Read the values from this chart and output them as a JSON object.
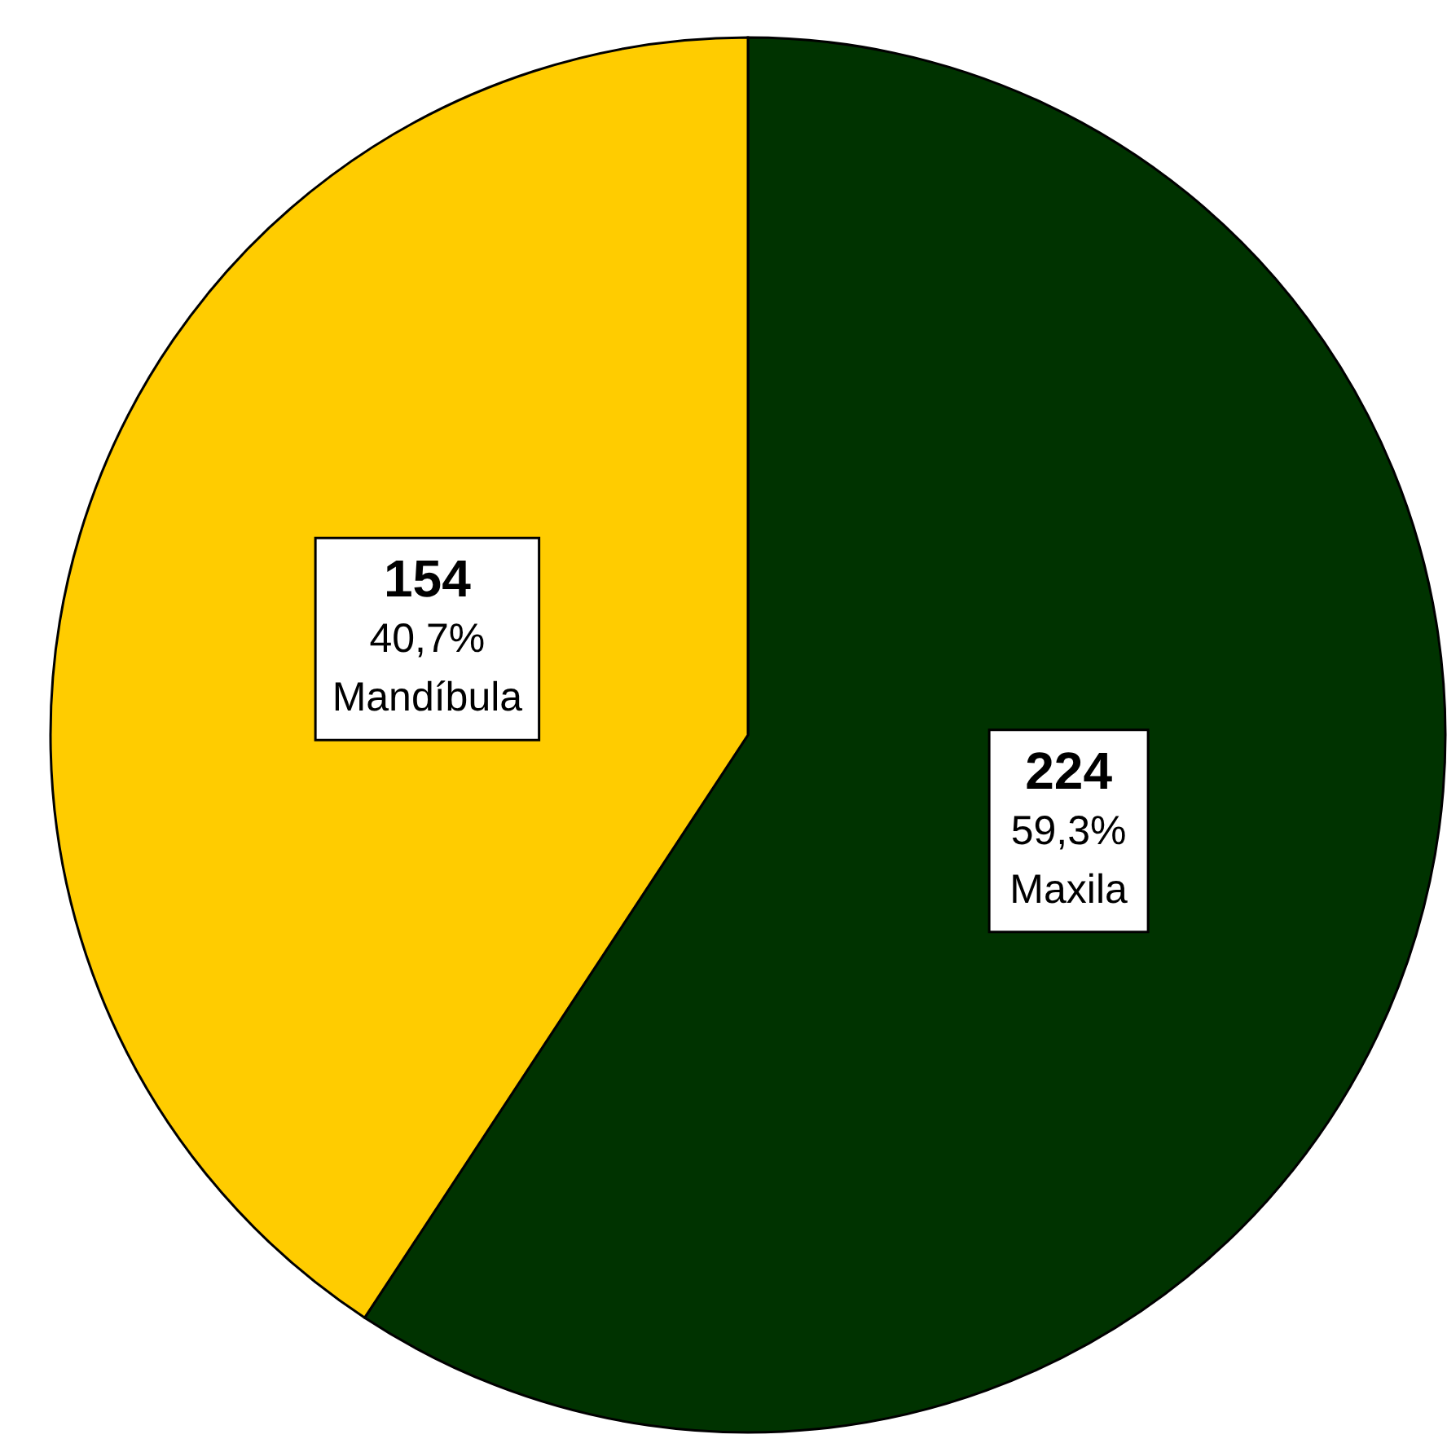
{
  "chart_data": {
    "type": "pie",
    "categories": [
      "Maxila",
      "Mandíbula"
    ],
    "values": [
      224,
      154
    ],
    "colors": [
      "#003300",
      "#ffcc00"
    ],
    "data_labels": true,
    "annotations": [
      "59,3%",
      "40,7%"
    ]
  }
}
